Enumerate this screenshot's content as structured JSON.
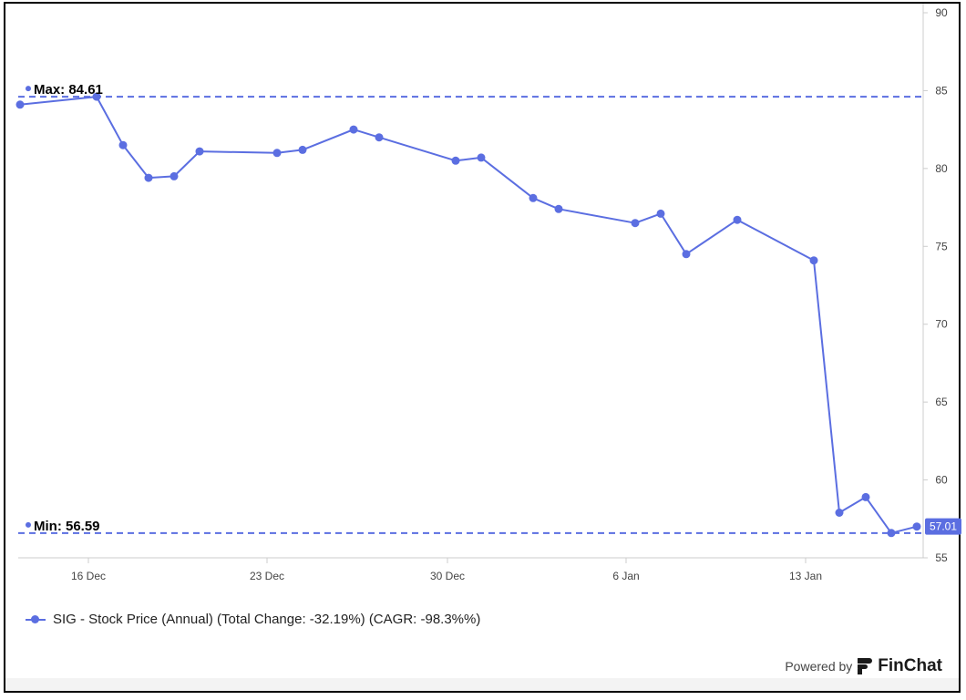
{
  "chart_data": {
    "type": "line",
    "title": "",
    "xlabel": "",
    "ylabel": "",
    "ylim": [
      55,
      90
    ],
    "yticks": [
      55,
      60,
      65,
      70,
      75,
      80,
      85,
      90
    ],
    "y_axis_position": "right",
    "xticks": [
      "16 Dec",
      "23 Dec",
      "30 Dec",
      "6 Jan",
      "13 Jan"
    ],
    "series": [
      {
        "name": "SIG - Stock Price (Annual) (Total Change: -32.19%) (CAGR: -98.3%%)",
        "color": "#5b6ee1",
        "x": [
          "Dec 13",
          "Dec 16",
          "Dec 17",
          "Dec 18",
          "Dec 19",
          "Dec 20",
          "Dec 23",
          "Dec 24",
          "Dec 26",
          "Dec 27",
          "Dec 30",
          "Dec 31",
          "Jan 2",
          "Jan 3",
          "Jan 6",
          "Jan 7",
          "Jan 8",
          "Jan 10",
          "Jan 13",
          "Jan 14",
          "Jan 15",
          "Jan 16",
          "Jan 17"
        ],
        "values": [
          84.1,
          84.61,
          81.5,
          79.4,
          79.5,
          81.1,
          81.0,
          81.2,
          82.5,
          82.0,
          80.5,
          80.7,
          78.1,
          77.4,
          76.5,
          77.1,
          74.5,
          76.7,
          74.1,
          57.9,
          58.9,
          56.59,
          57.01
        ]
      }
    ],
    "max": {
      "label": "Max: 84.61",
      "value": 84.61
    },
    "min": {
      "label": "Min: 56.59",
      "value": 56.59
    },
    "last": {
      "label": "57.01",
      "value": 57.01
    },
    "grid": false
  },
  "legend": {
    "label": "SIG - Stock Price (Annual) (Total Change: -32.19%) (CAGR: -98.3%%)"
  },
  "footer": {
    "powered_by": "Powered by",
    "brand": "FinChat"
  }
}
